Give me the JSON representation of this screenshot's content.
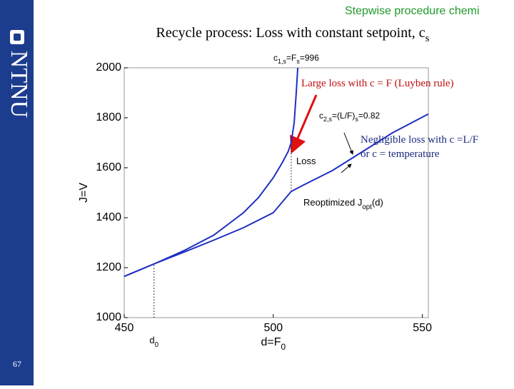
{
  "header": "Stepwise procedure chemi",
  "logo": "NTNU",
  "page_number": "67",
  "chart_data": {
    "type": "line",
    "title_parts": [
      "Recycle process: Loss with constant setpoint, c",
      "s"
    ],
    "x_label_parts": [
      "d=F",
      "0"
    ],
    "y_label": "J=V",
    "xlim": [
      450,
      552
    ],
    "ylim": [
      1000,
      2000
    ],
    "xticks": [
      450,
      500,
      550
    ],
    "yticks": [
      1000,
      1200,
      1400,
      1600,
      1800,
      2000
    ],
    "series": [
      {
        "name": "Reoptimized",
        "color": "#1f2fc0",
        "x": [
          450,
          460,
          470,
          480,
          490,
          500,
          506,
          510,
          520,
          530,
          540,
          552
        ],
        "values": [
          1165,
          1215,
          1262,
          1310,
          1360,
          1420,
          1505,
          1530,
          1590,
          1665,
          1740,
          1815
        ]
      },
      {
        "name": "Constant setpoint",
        "color": "#1f2fc0",
        "x": [
          450,
          460,
          470,
          480,
          490,
          495,
          500,
          503,
          505,
          506,
          507,
          507.7,
          508.2
        ],
        "values": [
          1165,
          1215,
          1268,
          1330,
          1420,
          1480,
          1560,
          1620,
          1665,
          1700,
          1780,
          1900,
          2000
        ]
      }
    ],
    "vlines": [
      {
        "x": 460,
        "from": 1000,
        "to": 1215
      },
      {
        "x": 506,
        "from": 1505,
        "to": 1690
      }
    ],
    "x_annotation_parts": [
      "d",
      "0"
    ],
    "annotations": [
      {
        "parts": [
          "c",
          "1,s",
          "=F",
          "s",
          "=996"
        ]
      },
      {
        "parts": [
          "c",
          "2,s",
          "=(L/F)",
          "s",
          "=0.82"
        ]
      },
      {
        "parts": [
          "Loss"
        ]
      },
      {
        "parts": [
          "Reoptimized J",
          "opt",
          "(d)"
        ]
      },
      {
        "parts": [
          "Large loss with c = F (Luyben rule)"
        ]
      },
      {
        "parts": [
          "Negligible loss with c =L/F"
        ]
      },
      {
        "parts": [
          "or c = temperature"
        ]
      }
    ]
  }
}
